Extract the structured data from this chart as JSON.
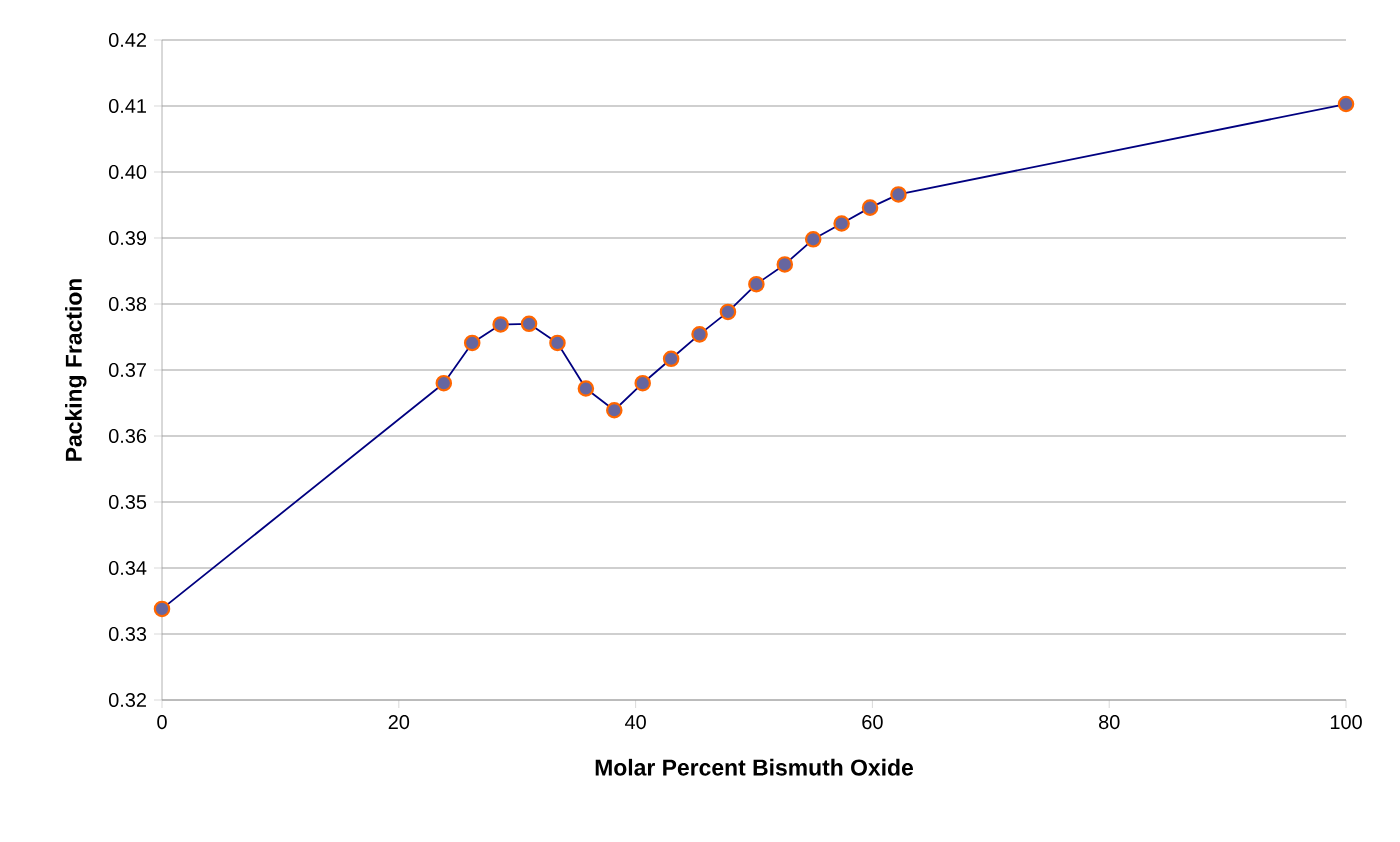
{
  "chart_data": {
    "type": "line",
    "xlabel": "Molar Percent Bismuth Oxide",
    "ylabel": "Packing Fraction",
    "x": [
      0,
      23.8,
      26.2,
      28.6,
      31.0,
      33.4,
      35.8,
      38.2,
      40.6,
      43.0,
      45.4,
      47.8,
      50.2,
      52.6,
      55.0,
      57.4,
      59.8,
      62.2,
      100
    ],
    "series": [
      {
        "color": "#000080",
        "values": [
          0.3338,
          0.368,
          0.3741,
          0.3769,
          0.377,
          0.3741,
          0.3672,
          0.3639,
          0.368,
          0.3717,
          0.3754,
          0.3788,
          0.383,
          0.386,
          0.3898,
          0.3922,
          0.3946,
          0.3966,
          0.4103
        ]
      }
    ],
    "marker": "circle",
    "line_style": "solid",
    "grid": "y",
    "xlim": [
      0,
      100
    ],
    "ylim": [
      0.32,
      0.42
    ],
    "xticks": [
      0,
      20,
      40,
      60,
      80,
      100
    ],
    "yticks": [
      0.32,
      0.33,
      0.34,
      0.35,
      0.36,
      0.37,
      0.38,
      0.39,
      {
        "value": 0.4,
        "label": "0.40"
      },
      0.41,
      0.42
    ]
  }
}
